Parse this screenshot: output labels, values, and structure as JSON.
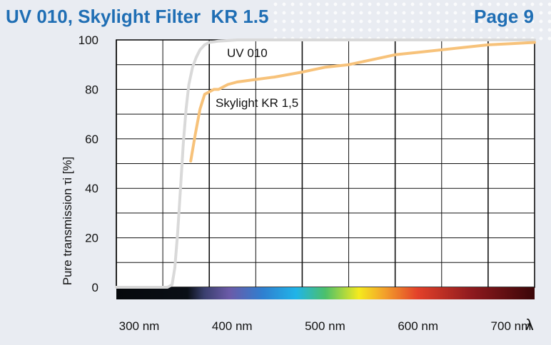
{
  "header": {
    "title": "UV 010, Skylight Filter  KR 1.5",
    "page": "Page 9"
  },
  "colors": {
    "brand": "#1f6eb4",
    "uv_line": "#d9d9d9",
    "skylight_line": "#f7c27a"
  },
  "chart_data": {
    "type": "line",
    "ylabel": "Pure transmission τi [%]",
    "xlabel": "",
    "x_symbol": "λ",
    "xlim": [
      300,
      750
    ],
    "ylim": [
      0,
      100
    ],
    "yticks": [
      0,
      20,
      40,
      60,
      80,
      100
    ],
    "xticks": [
      {
        "value": 300,
        "label": "300 nm"
      },
      {
        "value": 400,
        "label": "400 nm"
      },
      {
        "value": 500,
        "label": "500 nm"
      },
      {
        "value": 600,
        "label": "600 nm"
      },
      {
        "value": 700,
        "label": "700 nm"
      }
    ],
    "grid": true,
    "spectrum_bar": true,
    "series": [
      {
        "name": "UV 010",
        "color": "#d9d9d9",
        "x": [
          300,
          355,
          360,
          363,
          366,
          369,
          372,
          375,
          378,
          382,
          386,
          390,
          395,
          400,
          410,
          430,
          500,
          600,
          700,
          750
        ],
        "y": [
          0,
          0,
          1,
          8,
          22,
          40,
          58,
          72,
          82,
          89,
          93,
          96,
          98,
          99,
          99.5,
          100,
          100,
          100,
          100,
          100
        ]
      },
      {
        "name": "Skylight KR 1,5",
        "color": "#f7c27a",
        "x": [
          380,
          385,
          390,
          395,
          400,
          405,
          410,
          420,
          430,
          450,
          470,
          500,
          525,
          550,
          575,
          600,
          625,
          650,
          675,
          700,
          725,
          750
        ],
        "y": [
          51,
          62,
          72,
          78,
          79,
          80,
          80,
          82,
          83,
          84,
          85,
          87,
          89,
          90,
          92,
          94,
          95,
          96,
          97,
          98,
          98.5,
          99
        ]
      }
    ]
  }
}
